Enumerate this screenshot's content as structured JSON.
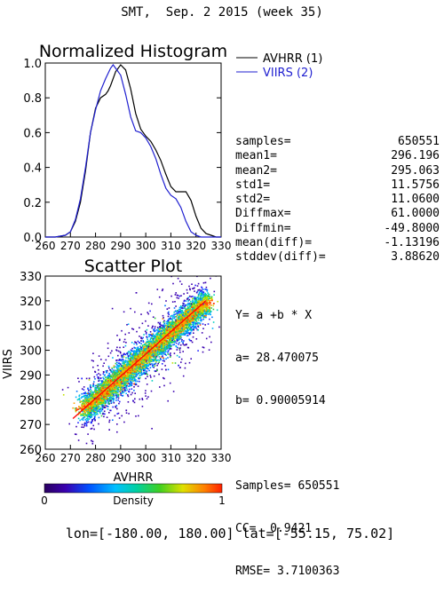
{
  "header": {
    "title": "SMT,  Sep. 2 2015 (week 35)"
  },
  "colors": {
    "avhrr": "#000000",
    "viirs": "#1f1fd0",
    "fit": "#ff0000"
  },
  "chart_data": [
    {
      "type": "line",
      "title": "Normalized Histogram",
      "xlabel": "",
      "ylabel": "",
      "xlim": [
        260,
        330
      ],
      "ylim": [
        0,
        1.0
      ],
      "x_ticks": [
        "260",
        "270",
        "280",
        "290",
        "300",
        "310",
        "320",
        "330"
      ],
      "y_ticks": [
        "0.0",
        "0.2",
        "0.4",
        "0.6",
        "0.8",
        "1.0"
      ],
      "series": [
        {
          "name": "AVHRR (1)",
          "color": "#000000",
          "x": [
            260,
            264,
            268,
            270,
            272,
            274,
            276,
            278,
            280,
            282,
            284,
            285,
            286,
            288,
            290,
            292,
            294,
            296,
            298,
            300,
            302,
            304,
            306,
            308,
            310,
            312,
            314,
            316,
            318,
            320,
            322,
            324,
            326,
            328,
            330
          ],
          "y": [
            0.0,
            0.0,
            0.01,
            0.03,
            0.09,
            0.2,
            0.38,
            0.6,
            0.74,
            0.8,
            0.82,
            0.84,
            0.87,
            0.95,
            0.99,
            0.96,
            0.85,
            0.71,
            0.62,
            0.58,
            0.55,
            0.5,
            0.44,
            0.36,
            0.29,
            0.26,
            0.26,
            0.26,
            0.21,
            0.12,
            0.05,
            0.02,
            0.01,
            0.0,
            0.0
          ]
        },
        {
          "name": "VIIRS (2)",
          "color": "#1f1fd0",
          "x": [
            260,
            264,
            268,
            270,
            272,
            274,
            276,
            278,
            280,
            282,
            284,
            286,
            287,
            288,
            290,
            292,
            294,
            296,
            298,
            300,
            302,
            304,
            306,
            308,
            310,
            312,
            314,
            316,
            318,
            320,
            322,
            324,
            326,
            328,
            330
          ],
          "y": [
            0.0,
            0.0,
            0.01,
            0.03,
            0.1,
            0.22,
            0.4,
            0.6,
            0.73,
            0.84,
            0.91,
            0.97,
            0.99,
            0.97,
            0.93,
            0.82,
            0.69,
            0.61,
            0.6,
            0.57,
            0.52,
            0.45,
            0.36,
            0.28,
            0.24,
            0.22,
            0.17,
            0.09,
            0.03,
            0.01,
            0.0,
            0.0,
            0.0,
            0.0,
            0.0
          ]
        }
      ]
    },
    {
      "type": "scatter",
      "title": "Scatter Plot",
      "xlabel": "AVHRR",
      "ylabel": "VIIRS",
      "xlim": [
        260,
        330
      ],
      "ylim": [
        260,
        330
      ],
      "x_ticks": [
        "260",
        "270",
        "280",
        "290",
        "300",
        "310",
        "320",
        "330"
      ],
      "y_ticks": [
        "260",
        "270",
        "280",
        "290",
        "300",
        "310",
        "320",
        "330"
      ],
      "fit": {
        "a": 28.470075,
        "b": 0.90005914
      },
      "density_cloud": {
        "x_center_range": [
          275,
          324
        ],
        "spread_yy": 6.5,
        "colorbar": {
          "label": "Density",
          "min_label": "0",
          "max_label": "1"
        }
      }
    }
  ],
  "stats": [
    {
      "label": "samples=",
      "value": "650551"
    },
    {
      "label": "mean1=",
      "value": "296.196"
    },
    {
      "label": "mean2=",
      "value": "295.063"
    },
    {
      "label": "std1=",
      "value": "11.5756"
    },
    {
      "label": "std2=",
      "value": "11.0600"
    },
    {
      "label": "Diffmax=",
      "value": "61.0000"
    },
    {
      "label": "Diffmin=",
      "value": "-49.8000"
    },
    {
      "label": "mean(diff)=",
      "value": "-1.13196"
    },
    {
      "label": "stddev(diff)=",
      "value": "3.88620"
    }
  ],
  "regression": {
    "equation": "Y= a +b * X",
    "a_line": "a= 28.470075",
    "b_line": "b= 0.90005914",
    "samples_line": "Samples= 650551",
    "cc_line": "CC=  0.9421",
    "rmse_line": "RMSE= 3.7100363"
  },
  "footer": {
    "lon_label": "lon=",
    "lon_range": "[-180.00, 180.00]",
    "lat_label": "lat=",
    "lat_range": "[-55.15, 75.02]"
  }
}
